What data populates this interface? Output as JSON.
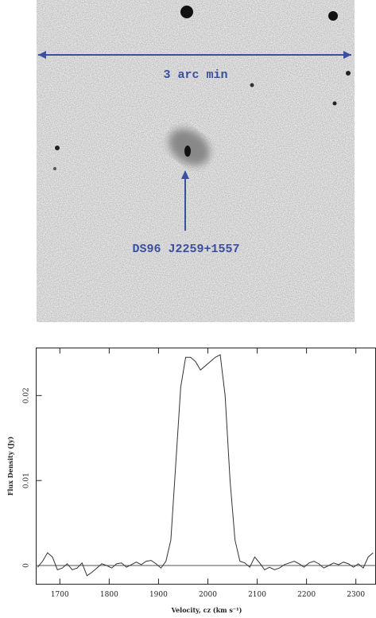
{
  "image": {
    "scale_label": "3 arc min",
    "object_label": "DS96 J2259+1557"
  },
  "chart_data": {
    "type": "line",
    "xlabel": "Velocity, cz (km s⁻¹)",
    "ylabel": "Flux Density (Jy)",
    "xlim": [
      1652,
      2340
    ],
    "ylim": [
      -0.0022,
      0.0256
    ],
    "xticks": [
      1700,
      1800,
      1900,
      2000,
      2100,
      2200,
      2300
    ],
    "yticks": [
      0,
      0.01,
      0.02
    ],
    "zero_line": true,
    "color": "#333333",
    "x": [
      1655,
      1665,
      1675,
      1685,
      1695,
      1705,
      1715,
      1725,
      1735,
      1745,
      1755,
      1765,
      1775,
      1785,
      1795,
      1805,
      1815,
      1825,
      1835,
      1845,
      1855,
      1865,
      1875,
      1885,
      1895,
      1905,
      1915,
      1925,
      1935,
      1945,
      1955,
      1965,
      1975,
      1985,
      1995,
      2005,
      2015,
      2025,
      2035,
      2045,
      2055,
      2065,
      2075,
      2085,
      2095,
      2105,
      2115,
      2125,
      2135,
      2145,
      2155,
      2165,
      2175,
      2185,
      2195,
      2205,
      2215,
      2225,
      2235,
      2245,
      2255,
      2265,
      2275,
      2285,
      2295,
      2305,
      2315,
      2325,
      2335
    ],
    "values": [
      -0.0002,
      0.0005,
      0.0015,
      0.001,
      -0.0005,
      -0.0003,
      0.0002,
      -0.0005,
      -0.0003,
      0.0003,
      -0.0012,
      -0.0008,
      -0.0003,
      0.0002,
      0,
      -0.0003,
      0.0002,
      0.0003,
      -0.0002,
      0.0001,
      0.0004,
      0.0001,
      0.0005,
      0.0006,
      0.0002,
      -0.0003,
      0.0005,
      0.003,
      0.012,
      0.021,
      0.0245,
      0.0245,
      0.024,
      0.023,
      0.0235,
      0.024,
      0.0245,
      0.0248,
      0.02,
      0.01,
      0.003,
      0.0005,
      0.0003,
      -0.0002,
      0.001,
      0.0003,
      -0.0005,
      -0.0002,
      -0.0005,
      -0.0003,
      0.0001,
      0.0003,
      0.0005,
      0.0002,
      -0.0002,
      0.0003,
      0.0005,
      0.0002,
      -0.0003,
      0,
      0.0003,
      0.0001,
      0.0004,
      0.0002,
      -0.0002,
      0.0002,
      -0.0003,
      0.001,
      0.0015
    ]
  }
}
